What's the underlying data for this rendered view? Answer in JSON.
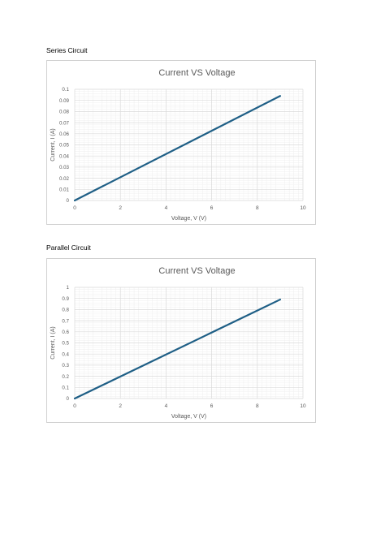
{
  "sections": [
    {
      "heading": "Series Circuit"
    },
    {
      "heading": "Parallel Circuit"
    }
  ],
  "colors": {
    "line": "#1f5f86",
    "grid_major": "#d9d9d9",
    "grid_minor": "#efefef",
    "text": "#595959"
  },
  "chart_data": [
    {
      "type": "line",
      "title": "Current VS Voltage",
      "xlabel": "Voltage, V (V)",
      "ylabel": "Current, I (A)",
      "xlim": [
        0,
        10
      ],
      "ylim": [
        0,
        0.1
      ],
      "x_ticks": [
        "0",
        "2",
        "4",
        "6",
        "8",
        "10"
      ],
      "y_ticks": [
        "0",
        "0.01",
        "0.02",
        "0.03",
        "0.04",
        "0.05",
        "0.06",
        "0.07",
        "0.08",
        "0.09",
        "0.1"
      ],
      "grid": true,
      "series": [
        {
          "x": [
            0,
            9
          ],
          "y": [
            0,
            0.094
          ]
        }
      ]
    },
    {
      "type": "line",
      "title": "Current VS Voltage",
      "xlabel": "Voltage, V (V)",
      "ylabel": "Current, I (A)",
      "xlim": [
        0,
        10
      ],
      "ylim": [
        0,
        1
      ],
      "x_ticks": [
        "0",
        "2",
        "4",
        "6",
        "8",
        "10"
      ],
      "y_ticks": [
        "0",
        "0.1",
        "0.2",
        "0.3",
        "0.4",
        "0.5",
        "0.6",
        "0.7",
        "0.8",
        "0.9",
        "1"
      ],
      "grid": true,
      "series": [
        {
          "x": [
            0,
            9
          ],
          "y": [
            0,
            0.89
          ]
        }
      ]
    }
  ]
}
